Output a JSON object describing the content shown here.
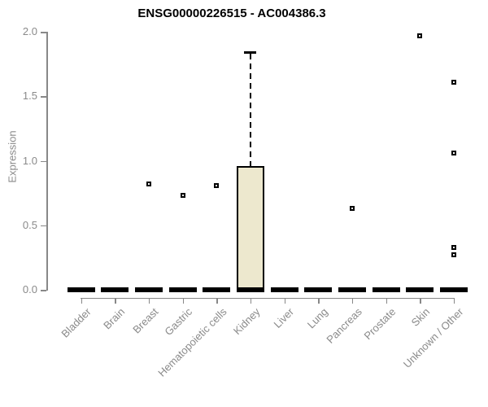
{
  "colors": {
    "box_fill": "#EDE8CE",
    "box_border": "#000000",
    "axis": "#888888",
    "tick_text": "#8A8A8A",
    "title_text": "#000000",
    "background": "#FFFFFF"
  },
  "chart_data": {
    "type": "boxplot",
    "title": "ENSG00000226515 - AC004386.3",
    "xlabel": "",
    "ylabel": "Expression",
    "ylim": [
      0.0,
      2.0
    ],
    "yticks": [
      "0.0",
      "0.5",
      "1.0",
      "1.5",
      "2.0"
    ],
    "grid": false,
    "legend": false,
    "categories": [
      "Bladder",
      "Brain",
      "Breast",
      "Gastric",
      "Hematopoietic cells",
      "Kidney",
      "Liver",
      "Lung",
      "Pancreas",
      "Prostate",
      "Skin",
      "Unknown / Other"
    ],
    "series": [
      {
        "name": "Bladder",
        "whisker_low": 0,
        "q1": 0,
        "median": 0,
        "q3": 0,
        "whisker_high": 0,
        "outliers": []
      },
      {
        "name": "Brain",
        "whisker_low": 0,
        "q1": 0,
        "median": 0,
        "q3": 0,
        "whisker_high": 0,
        "outliers": []
      },
      {
        "name": "Breast",
        "whisker_low": 0,
        "q1": 0,
        "median": 0,
        "q3": 0,
        "whisker_high": 0,
        "outliers": [
          0.82
        ]
      },
      {
        "name": "Gastric",
        "whisker_low": 0,
        "q1": 0,
        "median": 0,
        "q3": 0,
        "whisker_high": 0,
        "outliers": [
          0.73
        ]
      },
      {
        "name": "Hematopoietic cells",
        "whisker_low": 0,
        "q1": 0,
        "median": 0,
        "q3": 0,
        "whisker_high": 0,
        "outliers": [
          0.81
        ]
      },
      {
        "name": "Kidney",
        "whisker_low": 0,
        "q1": 0,
        "median": 0,
        "q3": 0.96,
        "whisker_high": 1.84,
        "outliers": []
      },
      {
        "name": "Liver",
        "whisker_low": 0,
        "q1": 0,
        "median": 0,
        "q3": 0,
        "whisker_high": 0,
        "outliers": []
      },
      {
        "name": "Lung",
        "whisker_low": 0,
        "q1": 0,
        "median": 0,
        "q3": 0,
        "whisker_high": 0,
        "outliers": []
      },
      {
        "name": "Pancreas",
        "whisker_low": 0,
        "q1": 0,
        "median": 0,
        "q3": 0,
        "whisker_high": 0,
        "outliers": [
          0.63
        ]
      },
      {
        "name": "Prostate",
        "whisker_low": 0,
        "q1": 0,
        "median": 0,
        "q3": 0,
        "whisker_high": 0,
        "outliers": []
      },
      {
        "name": "Skin",
        "whisker_low": 0,
        "q1": 0,
        "median": 0,
        "q3": 0,
        "whisker_high": 0,
        "outliers": [
          1.97
        ]
      },
      {
        "name": "Unknown / Other",
        "whisker_low": 0,
        "q1": 0,
        "median": 0,
        "q3": 0,
        "whisker_high": 0,
        "outliers": [
          1.61,
          1.06,
          0.33,
          0.27
        ]
      }
    ]
  }
}
